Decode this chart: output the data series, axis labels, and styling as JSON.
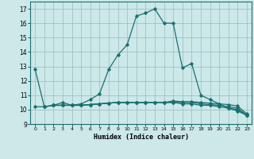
{
  "xlabel": "Humidex (Indice chaleur)",
  "background_color": "#cce8e8",
  "grid_color": "#99bbbb",
  "line_color": "#1a7070",
  "xlim": [
    -0.5,
    23.5
  ],
  "ylim": [
    9,
    17.5
  ],
  "yticks": [
    9,
    10,
    11,
    12,
    13,
    14,
    15,
    16,
    17
  ],
  "xticks": [
    0,
    1,
    2,
    3,
    4,
    5,
    6,
    7,
    8,
    9,
    10,
    11,
    12,
    13,
    14,
    15,
    16,
    17,
    18,
    19,
    20,
    21,
    22,
    23
  ],
  "line1_x": [
    0,
    1,
    2,
    3,
    4,
    5,
    6,
    7,
    8,
    9,
    10,
    11,
    12,
    13,
    14,
    15,
    16,
    17,
    18,
    19,
    20,
    21,
    22,
    23
  ],
  "line1_y": [
    12.8,
    10.2,
    10.3,
    10.5,
    10.3,
    10.4,
    10.7,
    11.1,
    12.8,
    13.8,
    14.5,
    16.5,
    16.7,
    17.0,
    16.0,
    16.0,
    12.9,
    13.2,
    11.0,
    10.7,
    10.4,
    10.1,
    9.9,
    9.6
  ],
  "line2_x": [
    0,
    1,
    2,
    3,
    4,
    5,
    6,
    7,
    8,
    9,
    10,
    11,
    12,
    13,
    14,
    15,
    16,
    17,
    18,
    19,
    20,
    21,
    22,
    23
  ],
  "line2_y": [
    10.2,
    10.2,
    10.3,
    10.3,
    10.3,
    10.3,
    10.35,
    10.4,
    10.45,
    10.5,
    10.5,
    10.5,
    10.5,
    10.5,
    10.5,
    10.5,
    10.5,
    10.5,
    10.4,
    10.35,
    10.3,
    10.2,
    10.1,
    9.6
  ],
  "line3_x": [
    1,
    2,
    3,
    4,
    5,
    6,
    7,
    8,
    9,
    10,
    11,
    12,
    13,
    14,
    15,
    16,
    17,
    18,
    19,
    20,
    21,
    22,
    23
  ],
  "line3_y": [
    10.2,
    10.3,
    10.3,
    10.3,
    10.3,
    10.35,
    10.4,
    10.45,
    10.5,
    10.5,
    10.5,
    10.5,
    10.5,
    10.5,
    10.5,
    10.4,
    10.4,
    10.3,
    10.3,
    10.2,
    10.1,
    10.0,
    9.6
  ],
  "line4_x": [
    2,
    3,
    4,
    5,
    6,
    7,
    8,
    9,
    10,
    11,
    12,
    13,
    14,
    15,
    16,
    17,
    18,
    19,
    20,
    21,
    22,
    23
  ],
  "line4_y": [
    10.3,
    10.3,
    10.3,
    10.3,
    10.35,
    10.4,
    10.45,
    10.5,
    10.5,
    10.5,
    10.5,
    10.5,
    10.5,
    10.6,
    10.55,
    10.55,
    10.5,
    10.45,
    10.4,
    10.35,
    10.25,
    9.7
  ]
}
